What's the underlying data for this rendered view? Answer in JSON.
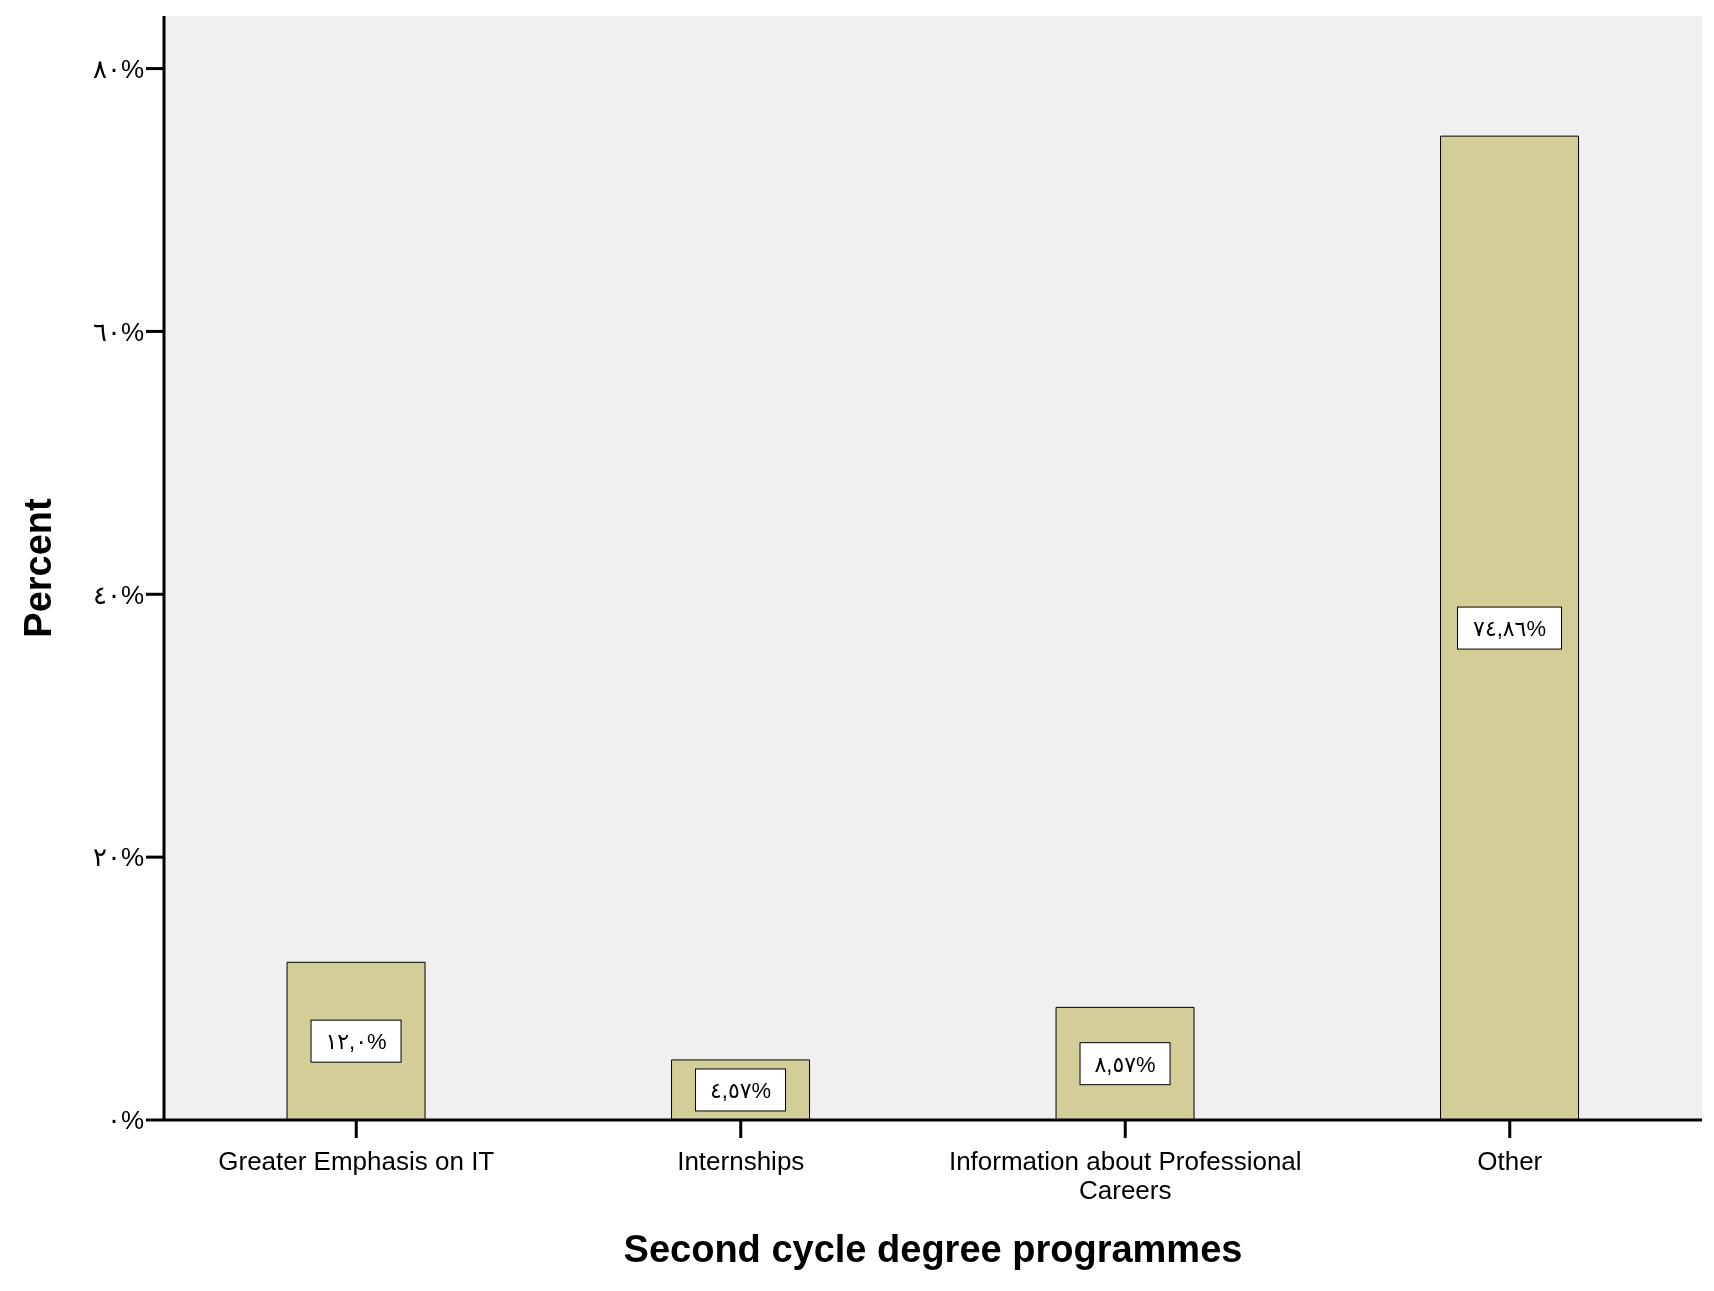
{
  "chart_data": {
    "type": "bar",
    "xlabel": "Second cycle degree programmes",
    "ylabel": "Percent",
    "categories": [
      "Greater Emphasis on IT",
      "Internships",
      "Information about Professional Careers",
      "Other"
    ],
    "values": [
      12.0,
      4.57,
      8.57,
      74.86
    ],
    "value_labels": [
      "١٢,٠%",
      "٤,٥٧%",
      "٨,٥٧%",
      "٧٤,٨٦%"
    ],
    "color": "#d3ce97",
    "ylim": [
      0,
      84
    ],
    "yticks": [
      {
        "value": 0,
        "label": "٠%"
      },
      {
        "value": 20,
        "label": "٢٠%"
      },
      {
        "value": 40,
        "label": "٤٠%"
      },
      {
        "value": 60,
        "label": "٦٠%"
      },
      {
        "value": 80,
        "label": "٨٠%"
      }
    ],
    "grid": false,
    "legend": false
  }
}
